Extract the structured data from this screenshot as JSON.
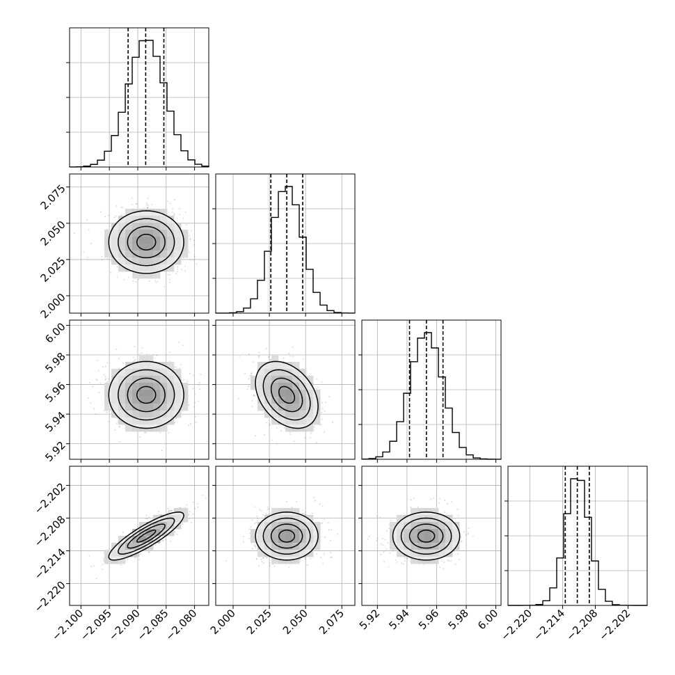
{
  "chart_data": {
    "type": "corner",
    "params": [
      {
        "mean": -2.0885,
        "sd": 0.0033,
        "range": [
          -2.102,
          -2.0775
        ],
        "ticks": [
          -2.1,
          -2.095,
          -2.09,
          -2.085,
          -2.08
        ],
        "tick_labels": [
          "−2.100",
          "−2.095",
          "−2.090",
          "−2.085",
          "−2.080"
        ],
        "quantiles": [
          -2.0917,
          -2.0886,
          -2.0854
        ]
      },
      {
        "mean": 2.037,
        "sd": 0.0108,
        "range": [
          1.988,
          2.084
        ],
        "ticks": [
          2.0,
          2.025,
          2.05,
          2.075
        ],
        "tick_labels": [
          "2.000",
          "2.025",
          "2.050",
          "2.075"
        ],
        "quantiles": [
          2.026,
          2.037,
          2.048
        ]
      },
      {
        "mean": 5.953,
        "sd": 0.0113,
        "range": [
          5.9095,
          6.0035
        ],
        "ticks": [
          5.92,
          5.94,
          5.96,
          5.98,
          6.0
        ],
        "tick_labels": [
          "5.92",
          "5.94",
          "5.96",
          "5.98",
          "6.00"
        ],
        "quantiles": [
          5.9417,
          5.9531,
          5.9643
        ]
      },
      {
        "mean": -2.2113,
        "sd": 0.0022,
        "range": [
          -2.224,
          -2.1985
        ],
        "ticks": [
          -2.22,
          -2.214,
          -2.208,
          -2.202
        ],
        "tick_labels": [
          "−2.220",
          "−2.214",
          "−2.208",
          "−2.202"
        ],
        "quantiles": [
          -2.2135,
          -2.2113,
          -2.2091
        ]
      }
    ],
    "correlations": [
      [
        0,
        1,
        0.0
      ],
      [
        0,
        2,
        0.0
      ],
      [
        0,
        3,
        0.86
      ],
      [
        1,
        2,
        -0.35
      ],
      [
        1,
        3,
        0.0
      ],
      [
        2,
        3,
        0.0
      ]
    ],
    "contour_levels": [
      0.5,
      1.0,
      1.5,
      2.0
    ],
    "grid": true,
    "xlabel": "",
    "ylabel": "",
    "title": ""
  }
}
